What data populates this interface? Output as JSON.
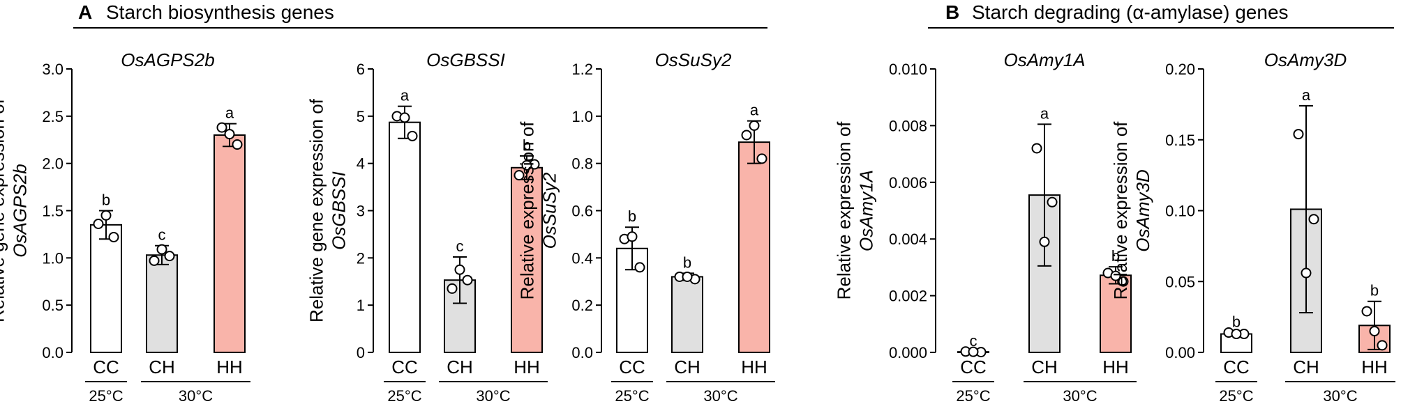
{
  "sections": [
    {
      "letter": "A",
      "title": "Starch biosynthesis genes"
    },
    {
      "letter": "B",
      "title": "Starch degrading (α-amylase) genes"
    }
  ],
  "colors": {
    "CC": "#ffffff",
    "CH": "#e0e0e0",
    "HH": "#f9b4aa"
  },
  "chart_data": [
    {
      "type": "bar",
      "title": "OsAGPS2b",
      "ylabel_plain": "Relative gene expression of",
      "ylabel_italic": "OsAGPS2b",
      "ylim": [
        0,
        3.0
      ],
      "ticks": [
        "0.0",
        "0.5",
        "1.0",
        "1.5",
        "2.0",
        "2.5",
        "3.0"
      ],
      "categories": [
        "CC",
        "CH",
        "HH"
      ],
      "values": [
        1.35,
        1.03,
        2.3
      ],
      "errors": [
        0.15,
        0.1,
        0.12
      ],
      "points": [
        [
          1.36,
          1.22,
          1.45
        ],
        [
          0.97,
          1.02,
          1.09
        ],
        [
          2.38,
          2.2,
          2.31
        ]
      ],
      "letters": [
        "b",
        "c",
        "a"
      ],
      "groups": [
        "25°C",
        "30°C"
      ]
    },
    {
      "type": "bar",
      "title": "OsGBSSI",
      "ylabel_plain": "Relative gene expression of",
      "ylabel_italic": "OsGBSSI",
      "ylim": [
        0,
        6
      ],
      "ticks": [
        "0",
        "1",
        "2",
        "3",
        "4",
        "5",
        "6"
      ],
      "categories": [
        "CC",
        "CH",
        "HH"
      ],
      "values": [
        4.87,
        1.53,
        3.91
      ],
      "errors": [
        0.34,
        0.49,
        0.25
      ],
      "points": [
        [
          5.0,
          4.58,
          4.97
        ],
        [
          1.35,
          1.53,
          1.75
        ],
        [
          3.75,
          3.98,
          3.96
        ]
      ],
      "letters": [
        "a",
        "c",
        "b"
      ],
      "groups": [
        "25°C",
        "30°C"
      ]
    },
    {
      "type": "bar",
      "title": "OsSuSy2",
      "ylabel_plain": "Relative expression of",
      "ylabel_italic": "OsSuSy2",
      "ylim": [
        0,
        1.2
      ],
      "ticks": [
        "0.0",
        "0.2",
        "0.4",
        "0.6",
        "0.8",
        "1.0",
        "1.2"
      ],
      "categories": [
        "CC",
        "CH",
        "HH"
      ],
      "values": [
        0.44,
        0.32,
        0.89
      ],
      "errors": [
        0.09,
        0.015,
        0.09
      ],
      "points": [
        [
          0.48,
          0.36,
          0.49
        ],
        [
          0.32,
          0.31,
          0.32
        ],
        [
          0.92,
          0.82,
          0.96
        ]
      ],
      "letters": [
        "b",
        "b",
        "a"
      ],
      "groups": [
        "25°C",
        "30°C"
      ]
    },
    {
      "type": "bar",
      "title": "OsAmy1A",
      "ylabel_plain": "Relative expression of",
      "ylabel_italic": "OsAmy1A",
      "ylim": [
        0,
        0.01
      ],
      "ticks": [
        "0.000",
        "0.002",
        "0.004",
        "0.006",
        "0.008",
        "0.010"
      ],
      "categories": [
        "CC",
        "CH",
        "HH"
      ],
      "values": [
        2e-05,
        0.00555,
        0.00272
      ],
      "errors": [
        1e-05,
        0.0025,
        0.0003
      ],
      "points": [
        [
          3e-05,
          1e-05,
          2e-05
        ],
        [
          0.0072,
          0.0053,
          0.0039
        ],
        [
          0.0028,
          0.0025,
          0.0027
        ]
      ],
      "letters": [
        "c",
        "a",
        "b"
      ],
      "groups": [
        "25°C",
        "30°C"
      ]
    },
    {
      "type": "bar",
      "title": "OsAmy3D",
      "ylabel_plain": "Relative expression of",
      "ylabel_italic": "OsAmy3D",
      "ylim": [
        0,
        0.2
      ],
      "ticks": [
        "0.00",
        "0.05",
        "0.10",
        "0.15",
        "0.20"
      ],
      "categories": [
        "CC",
        "CH",
        "HH"
      ],
      "values": [
        0.013,
        0.101,
        0.019
      ],
      "errors": [
        0.001,
        0.073,
        0.017
      ],
      "points": [
        [
          0.014,
          0.013,
          0.013
        ],
        [
          0.154,
          0.094,
          0.056
        ],
        [
          0.029,
          0.005,
          0.015
        ]
      ],
      "letters": [
        "b",
        "a",
        "b"
      ],
      "groups": [
        "25°C",
        "30°C"
      ]
    }
  ]
}
